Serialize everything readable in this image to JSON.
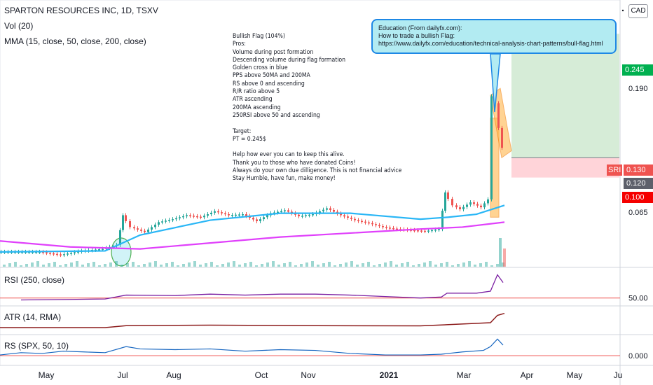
{
  "header": {
    "symbol_title": "SPARTON RESOURCES INC, 1D, TSXV",
    "vol_label": "Vol (20)",
    "mma_label": "MMA (15, close, 50, close, 200, close)",
    "currency": "CAD"
  },
  "notes": [
    "Bullish Flag (104%)",
    "Pros:",
    "Volume during post formation",
    "Descending volume during flag formation",
    "Golden cross in blue",
    "PPS above 50MA and 200MA",
    "RS above 0 and ascending",
    "R/R ratio above 5",
    "ATR ascending",
    "200MA ascending",
    "250RSI above 50 and ascending",
    "",
    "Target:",
    "PT = 0.245$",
    "",
    "Help how ever you can to keep this alive.",
    "Thank you to those who have donated Coins!",
    "Always do your own due dilligence. This is not financial advice",
    "Stay Humble, have fun, make money!"
  ],
  "callout": [
    "Education (From dailyfx.com):",
    "How to trade a bullish Flag:",
    "https://www.dailyfx.com/education/technical-analysis-chart-patterns/bull-flag.html"
  ],
  "price_tags": {
    "target": "0.245",
    "symbol": "SRI",
    "last": "0.130",
    "entry": "0.120",
    "stop": "0.100"
  },
  "colors": {
    "up": "#26a69a",
    "down": "#ef5350",
    "ma50": "#29b6f6",
    "ma200": "#e040fb",
    "rsi": "#7b1fa2",
    "atr": "#8b1a1a",
    "rs": "#1565c0",
    "profit_zone": "#c8e6c9",
    "loss_zone": "#ffcdd2",
    "flag": "#ffb74d"
  },
  "chart_data": [
    {
      "type": "candlestick",
      "title": "SPARTON RESOURCES INC, 1D, TSXV",
      "x_ticks": [
        "May",
        "Jul",
        "Aug",
        "Oct",
        "Nov",
        "2021",
        "Mar",
        "Apr",
        "May",
        "Ju"
      ],
      "y_ticks": [
        "0.190",
        "0.065"
      ],
      "ylim": [
        0.015,
        0.265
      ],
      "price_path": [
        [
          0,
          0.025
        ],
        [
          30,
          0.025
        ],
        [
          60,
          0.025
        ],
        [
          90,
          0.022
        ],
        [
          120,
          0.026
        ],
        [
          150,
          0.028
        ],
        [
          170,
          0.032
        ],
        [
          178,
          0.062
        ],
        [
          190,
          0.05
        ],
        [
          210,
          0.045
        ],
        [
          230,
          0.055
        ],
        [
          250,
          0.058
        ],
        [
          270,
          0.062
        ],
        [
          290,
          0.06
        ],
        [
          310,
          0.066
        ],
        [
          330,
          0.062
        ],
        [
          350,
          0.063
        ],
        [
          370,
          0.056
        ],
        [
          390,
          0.064
        ],
        [
          410,
          0.067
        ],
        [
          430,
          0.061
        ],
        [
          450,
          0.063
        ],
        [
          470,
          0.069
        ],
        [
          490,
          0.062
        ],
        [
          510,
          0.057
        ],
        [
          530,
          0.054
        ],
        [
          550,
          0.05
        ],
        [
          570,
          0.048
        ],
        [
          590,
          0.047
        ],
        [
          610,
          0.046
        ],
        [
          630,
          0.048
        ],
        [
          638,
          0.085
        ],
        [
          650,
          0.072
        ],
        [
          660,
          0.068
        ],
        [
          675,
          0.075
        ],
        [
          690,
          0.07
        ],
        [
          700,
          0.078
        ],
        [
          705,
          0.182
        ],
        [
          710,
          0.175
        ],
        [
          715,
          0.15
        ],
        [
          720,
          0.13
        ]
      ],
      "series": [
        {
          "name": "MMA 50",
          "points": [
            [
              0,
              0.025
            ],
            [
              150,
              0.026
            ],
            [
              200,
              0.042
            ],
            [
              300,
              0.057
            ],
            [
              400,
              0.064
            ],
            [
              500,
              0.064
            ],
            [
              600,
              0.058
            ],
            [
              640,
              0.06
            ],
            [
              680,
              0.063
            ],
            [
              720,
              0.072
            ]
          ]
        },
        {
          "name": "MMA 200",
          "points": [
            [
              0,
              0.036
            ],
            [
              100,
              0.03
            ],
            [
              200,
              0.028
            ],
            [
              300,
              0.034
            ],
            [
              400,
              0.04
            ],
            [
              500,
              0.044
            ],
            [
              600,
              0.048
            ],
            [
              660,
              0.05
            ],
            [
              720,
              0.055
            ]
          ]
        }
      ],
      "target": 0.245,
      "entry": 0.12,
      "stop": 0.1,
      "last": 0.13
    },
    {
      "type": "line",
      "title": "RSI (250, close)",
      "y_ticks": [
        "50.00"
      ],
      "reference": 50,
      "ylim": [
        44,
        78
      ],
      "series": [
        {
          "points": [
            [
              30,
              48
            ],
            [
              100,
              48.5
            ],
            [
              150,
              49
            ],
            [
              180,
              53
            ],
            [
              250,
              52.5
            ],
            [
              300,
              54
            ],
            [
              350,
              53
            ],
            [
              400,
              54
            ],
            [
              450,
              54
            ],
            [
              500,
              53
            ],
            [
              550,
              51.5
            ],
            [
              600,
              50
            ],
            [
              630,
              51
            ],
            [
              638,
              55
            ],
            [
              680,
              55
            ],
            [
              700,
              57
            ],
            [
              710,
              74
            ],
            [
              718,
              66
            ]
          ]
        }
      ]
    },
    {
      "type": "line",
      "title": "ATR (14, RMA)",
      "ylim": [
        0,
        10
      ],
      "series": [
        {
          "points": [
            [
              0,
              2.0
            ],
            [
              150,
              2.0
            ],
            [
              180,
              2.8
            ],
            [
              300,
              3.0
            ],
            [
              450,
              2.8
            ],
            [
              600,
              2.7
            ],
            [
              640,
              3.2
            ],
            [
              700,
              4.0
            ],
            [
              710,
              7.0
            ],
            [
              720,
              7.8
            ]
          ]
        }
      ]
    },
    {
      "type": "line",
      "title": "RS (SPX, 50, 10)",
      "y_ticks": [
        "0.000"
      ],
      "reference": 0,
      "ylim": [
        -1,
        2.6
      ],
      "series": [
        {
          "points": [
            [
              0,
              0.1
            ],
            [
              30,
              0.4
            ],
            [
              60,
              0.3
            ],
            [
              90,
              0.6
            ],
            [
              120,
              0.5
            ],
            [
              150,
              0.4
            ],
            [
              180,
              1.2
            ],
            [
              200,
              0.9
            ],
            [
              250,
              0.8
            ],
            [
              300,
              0.9
            ],
            [
              350,
              0.6
            ],
            [
              400,
              0.8
            ],
            [
              450,
              0.7
            ],
            [
              500,
              0.3
            ],
            [
              550,
              0.1
            ],
            [
              600,
              0.1
            ],
            [
              630,
              0.2
            ],
            [
              660,
              0.5
            ],
            [
              690,
              0.7
            ],
            [
              700,
              1.2
            ],
            [
              710,
              2.2
            ],
            [
              718,
              1.4
            ]
          ]
        }
      ]
    }
  ]
}
